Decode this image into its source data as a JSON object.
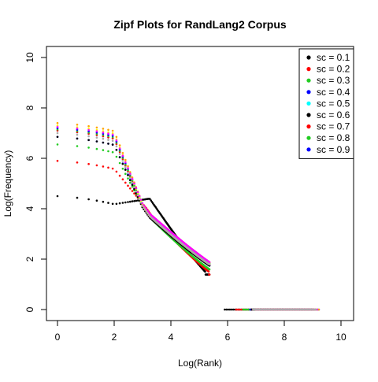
{
  "chart_data": {
    "type": "scatter",
    "title": "Zipf Plots for RandLang2 Corpus",
    "xlabel": "Log(Rank)",
    "ylabel": "Log(Frequency)",
    "xlim": [
      0,
      10
    ],
    "ylim": [
      0,
      10
    ],
    "xticks": [
      "0",
      "2",
      "4",
      "6",
      "8",
      "10"
    ],
    "yticks": [
      "0",
      "2",
      "4",
      "6",
      "8",
      "10"
    ],
    "grid": false,
    "legend_position": "top-right",
    "series": [
      {
        "name": "sc = 0.1",
        "color": "#000000",
        "f1": 4.5,
        "knee": 3.25,
        "k1": 4.0,
        "tailEnd": 5.9,
        "maxX": 7.4
      },
      {
        "name": "sc = 0.2",
        "color": "#ff0000",
        "f1": 5.9,
        "knee": 3.15,
        "k1": 3.6,
        "tailEnd": 6.3,
        "maxX": 8.0
      },
      {
        "name": "sc = 0.3",
        "color": "#22cc22",
        "f1": 6.55,
        "knee": 3.05,
        "k1": 3.6,
        "tailEnd": 6.55,
        "maxX": 8.6
      },
      {
        "name": "sc = 0.4",
        "color": "#0000ff",
        "f1": 6.85,
        "knee": 3.0,
        "k1": 3.7,
        "tailEnd": 6.8,
        "maxX": 9.0
      },
      {
        "name": "sc = 0.5",
        "color": "#00ffff",
        "f1": 7.1,
        "knee": 3.0,
        "k1": 3.75,
        "tailEnd": 6.95,
        "maxX": 9.1
      },
      {
        "name": "sc = 0.6",
        "color": "#000000",
        "f1": 6.85,
        "knee": 3.0,
        "k1": 3.65,
        "tailEnd": 6.85,
        "maxX": 9.05
      },
      {
        "name": "sc = 0.7",
        "color": "#ff0000",
        "f1": 7.1,
        "knee": 3.0,
        "k1": 3.7,
        "tailEnd": 6.9,
        "maxX": 9.1
      },
      {
        "name": "sc = 0.8",
        "color": "#22cc22",
        "f1": 7.15,
        "knee": 3.0,
        "k1": 3.75,
        "tailEnd": 6.95,
        "maxX": 9.2
      },
      {
        "name": "sc = 0.9",
        "color": "#0000ff",
        "f1": 7.2,
        "knee": 3.0,
        "k1": 3.8,
        "tailEnd": 7.0,
        "maxX": 9.25
      }
    ],
    "extra_points": [
      {
        "color": "#ffa500",
        "f1": 7.4,
        "knee": 3.0,
        "k1": 3.8,
        "tailEnd": 7.0,
        "maxX": 9.25
      },
      {
        "color": "#ffff00",
        "f1": 7.3,
        "knee": 3.0,
        "k1": 3.75,
        "tailEnd": 7.0,
        "maxX": 9.2
      },
      {
        "color": "#ff00ff",
        "f1": 7.25,
        "knee": 3.0,
        "k1": 3.8,
        "tailEnd": 7.0,
        "maxX": 9.2
      },
      {
        "color": "#aaaaaa",
        "f1": 7.0,
        "knee": 3.0,
        "k1": 3.7,
        "tailEnd": 6.9,
        "maxX": 9.15
      }
    ]
  }
}
